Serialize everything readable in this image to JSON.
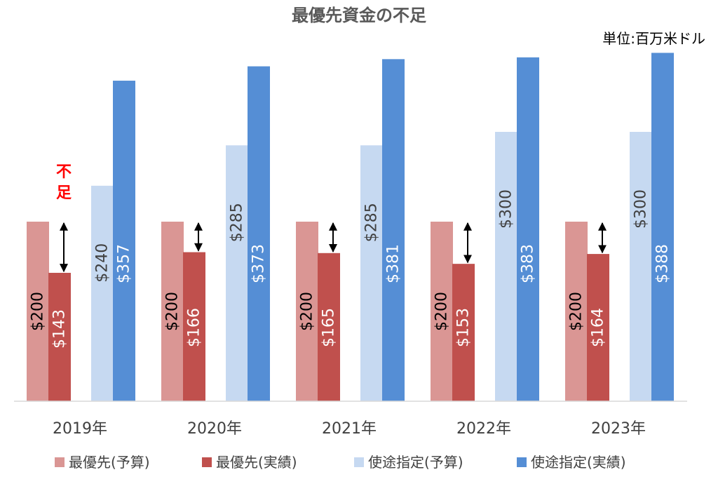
{
  "chart_data": {
    "type": "bar",
    "title": "最優先資金の不足",
    "unit_label": "単位:百万米ドル",
    "annotation": "不足",
    "categories": [
      "2019年",
      "2020年",
      "2021年",
      "2022年",
      "2023年"
    ],
    "series": [
      {
        "name": "最優先(予算)",
        "values": [
          200,
          200,
          200,
          200,
          200
        ],
        "color": "#da9694",
        "label_color": "#000000",
        "labels": [
          "$200",
          "$200",
          "$200",
          "$200",
          "$200"
        ]
      },
      {
        "name": "最優先(実績)",
        "values": [
          143,
          166,
          165,
          153,
          164
        ],
        "color": "#c0504d",
        "label_color": "#ffffff",
        "labels": [
          "$143",
          "$166",
          "$165",
          "$153",
          "$164"
        ]
      },
      {
        "name": "使途指定(予算)",
        "values": [
          240,
          285,
          285,
          300,
          300
        ],
        "color": "#c6d9f1",
        "label_color": "#404040",
        "labels": [
          "$240",
          "$285",
          "$285",
          "$300",
          "$300"
        ]
      },
      {
        "name": "使途指定(実績)",
        "values": [
          357,
          373,
          381,
          383,
          388
        ],
        "color": "#558ed5",
        "label_color": "#ffffff",
        "labels": [
          "$357",
          "$373",
          "$381",
          "$383",
          "$388"
        ]
      }
    ],
    "ylim": [
      0,
      400
    ],
    "grid": false,
    "legend_position": "bottom"
  }
}
